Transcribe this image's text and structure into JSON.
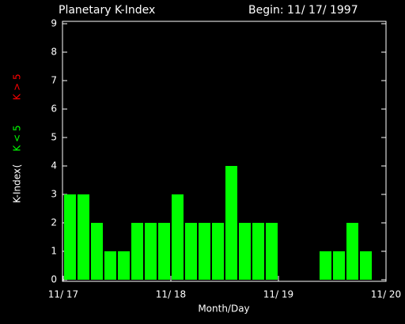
{
  "chart_data": {
    "type": "bar",
    "title": "Planetary K-Index",
    "subtitle": "Begin: 11/ 17/ 1997",
    "x_label": "Month/Day",
    "y_label": "K-Index",
    "legend_open": "(",
    "legend": [
      {
        "label": "K < 5",
        "color": "#00ff00"
      },
      {
        "label": "K > 5",
        "color": "#ff0000"
      }
    ],
    "x": [
      0,
      1,
      2,
      3,
      4,
      5,
      6,
      7,
      8,
      9,
      10,
      11,
      12,
      13,
      14,
      15,
      16,
      17,
      18,
      19,
      20,
      21,
      22,
      23
    ],
    "values": [
      3,
      3,
      2,
      1,
      1,
      2,
      2,
      2,
      3,
      2,
      2,
      2,
      4,
      2,
      2,
      2,
      null,
      null,
      null,
      1,
      1,
      2,
      1,
      null
    ],
    "color": "#00ff00",
    "xlim": [
      0,
      24
    ],
    "xticks": [
      {
        "value": 0,
        "label": "11/ 17"
      },
      {
        "value": 8,
        "label": "11/ 18"
      },
      {
        "value": 16,
        "label": "11/ 19"
      },
      {
        "value": 24,
        "label": "11/ 20"
      }
    ],
    "ylim": [
      0,
      9
    ],
    "yticks": [
      0,
      1,
      2,
      3,
      4,
      5,
      6,
      7,
      8,
      9
    ]
  }
}
